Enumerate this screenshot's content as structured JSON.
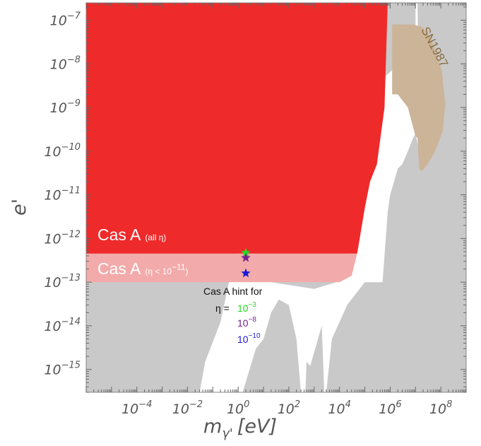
{
  "chart_data": {
    "type": "area",
    "title": "",
    "xlabel": "m",
    "xlabel_sub": "γ'",
    "xlabel_unit": "[eV]",
    "ylabel": "e'",
    "x_scale": "log",
    "y_scale": "log",
    "xlim": [
      1e-06,
      1000000000.0
    ],
    "ylim": [
      3e-16,
      2.5e-07
    ],
    "x_ticks": [
      {
        "base": "10",
        "exp": "−4",
        "value": 0.0001
      },
      {
        "base": "10",
        "exp": "−2",
        "value": 0.01
      },
      {
        "base": "10",
        "exp": "0",
        "value": 1
      },
      {
        "base": "10",
        "exp": "2",
        "value": 100.0
      },
      {
        "base": "10",
        "exp": "4",
        "value": 10000.0
      },
      {
        "base": "10",
        "exp": "6",
        "value": 1000000.0
      },
      {
        "base": "10",
        "exp": "8",
        "value": 100000000.0
      }
    ],
    "y_ticks": [
      {
        "base": "10",
        "exp": "−15",
        "value": 1e-15
      },
      {
        "base": "10",
        "exp": "−14",
        "value": 1e-14
      },
      {
        "base": "10",
        "exp": "−13",
        "value": 1e-13
      },
      {
        "base": "10",
        "exp": "−12",
        "value": 1e-12
      },
      {
        "base": "10",
        "exp": "−11",
        "value": 1e-11
      },
      {
        "base": "10",
        "exp": "−10",
        "value": 1e-10
      },
      {
        "base": "10",
        "exp": "−9",
        "value": 1e-09
      },
      {
        "base": "10",
        "exp": "−8",
        "value": 1e-08
      },
      {
        "base": "10",
        "exp": "−7",
        "value": 1e-07
      }
    ],
    "colors": {
      "existing_bounds": "#c9c9c9",
      "cas_a_all_eta": "#ee2a2a",
      "cas_a_eta_small": "#f3aaaa",
      "sn1987": "#cbb498",
      "hint_eta_1e-3": "#22dd22",
      "hint_eta_1e-8": "#7a1f8f",
      "hint_eta_1e-10": "#1a1ad6"
    },
    "regions": [
      {
        "id": "existing-bounds",
        "points": [
          [
            1e-06,
            2.5e-07
          ],
          [
            10000000.0,
            2.5e-07
          ],
          [
            10000000.0,
            5e-09
          ],
          [
            1500000.0,
            8e-09
          ],
          [
            600000.0,
            5e-09
          ],
          [
            160000.0,
            2e-11
          ],
          [
            30000.0,
            1.4e-12
          ],
          [
            10000.0,
            1.05e-13
          ],
          [
            1000.0,
            7e-14
          ],
          [
            20,
            1e-13
          ],
          [
            5,
            4e-13
          ],
          [
            2.5,
            1e-12
          ],
          [
            2,
            1.1e-12
          ],
          [
            1,
            8e-13
          ],
          [
            0.5,
            1.5e-13
          ],
          [
            0.2,
            1.2e-14
          ],
          [
            0.05,
            1.5e-15
          ],
          [
            0.03,
            3e-16
          ],
          [
            1.5,
            3e-16
          ],
          [
            5,
            3e-15
          ],
          [
            10,
            5e-15
          ],
          [
            20,
            2e-14
          ],
          [
            40,
            4e-14
          ],
          [
            100,
            3e-14
          ],
          [
            200,
            5e-15
          ],
          [
            300,
            3e-16
          ],
          [
            450,
            3e-16
          ],
          [
            500,
            1.5e-15
          ],
          [
            700,
            1.2e-15
          ],
          [
            2000,
            1e-14
          ],
          [
            2500,
            3e-16
          ],
          [
            3000,
            3e-16
          ],
          [
            5000,
            5e-15
          ],
          [
            20000.0,
            3e-14
          ],
          [
            100000.0,
            1e-13
          ],
          [
            500000.0,
            1e-13
          ],
          [
            800000.0,
            4e-12
          ],
          [
            1000000.0,
            1e-11
          ],
          [
            2000000.0,
            4e-11
          ],
          [
            3000000.0,
            5e-11
          ],
          [
            5000000.0,
            1e-10
          ],
          [
            8000000.0,
            2e-10
          ],
          [
            10000000.0,
            2.5e-10
          ],
          [
            14000000.0,
            1e-10
          ],
          [
            15000000.0,
            1e-09
          ],
          [
            13000000.0,
            1e-08
          ],
          [
            12000000.0,
            2.5e-07
          ],
          [
            1000000000.0,
            2.5e-07
          ],
          [
            1000000000.0,
            3e-16
          ],
          [
            1e-06,
            3e-16
          ]
        ]
      },
      {
        "id": "sn1987",
        "points": [
          [
            1200000.0,
            8e-08
          ],
          [
            2000000.0,
            8e-08
          ],
          [
            8000000.0,
            8e-08
          ],
          [
            18000000.0,
            7e-08
          ],
          [
            40000000.0,
            4e-08
          ],
          [
            110000000.0,
            7e-09
          ],
          [
            150000000.0,
            1.2e-09
          ],
          [
            120000000.0,
            3e-10
          ],
          [
            60000000.0,
            1e-10
          ],
          [
            30000000.0,
            5e-11
          ],
          [
            18000000.0,
            3.5e-11
          ],
          [
            14000000.0,
            4e-11
          ],
          [
            12000000.0,
            2e-10
          ],
          [
            10000000.0,
            2.2e-10
          ],
          [
            5000000.0,
            1e-09
          ],
          [
            2000000.0,
            2e-09
          ],
          [
            1200000.0,
            2e-09
          ]
        ]
      },
      {
        "id": "cas-a-eta-small",
        "label": "Cas A",
        "qualifier": "(η < 10",
        "qualifier_exp": "−11",
        "qualifier_end": ")",
        "points": [
          [
            1e-06,
            4.5e-13
          ],
          [
            50000.0,
            4.5e-13
          ],
          [
            30000.0,
            1.4e-13
          ],
          [
            10000.0,
            1e-13
          ],
          [
            1e-06,
            1e-13
          ]
        ]
      },
      {
        "id": "cas-a-all-eta",
        "label": "Cas A",
        "qualifier": "(all η)",
        "points": [
          [
            1e-06,
            2.5e-07
          ],
          [
            800000.0,
            2.5e-07
          ],
          [
            600000.0,
            1e-09
          ],
          [
            300000.0,
            5e-11
          ],
          [
            160000.0,
            2e-11
          ],
          [
            100000.0,
            5e-12
          ],
          [
            50000.0,
            4.5e-13
          ],
          [
            1e-06,
            4.5e-13
          ]
        ]
      }
    ],
    "hint": {
      "title": "Cas A hint for",
      "eta_label": "η =",
      "points": [
        {
          "eta_base": "10",
          "eta_exp": "−3",
          "x": 2,
          "y": 4.7e-13,
          "color": "#22dd22"
        },
        {
          "eta_base": "10",
          "eta_exp": "−8",
          "x": 2,
          "y": 3.6e-13,
          "color": "#7a1f8f"
        },
        {
          "eta_base": "10",
          "eta_exp": "−10",
          "x": 2,
          "y": 1.6e-13,
          "color": "#1a1ad6"
        }
      ]
    },
    "sn_label": "SN1987",
    "grid": false,
    "legend": "none"
  }
}
